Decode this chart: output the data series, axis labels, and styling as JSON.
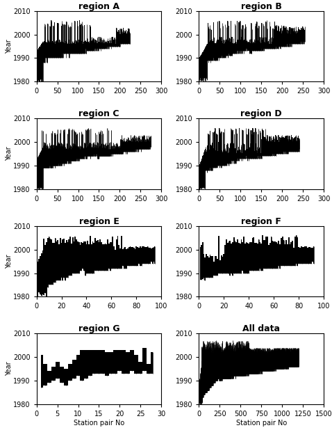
{
  "regions": [
    "region A",
    "region B",
    "region C",
    "region D",
    "region E",
    "region F",
    "region G",
    "All data"
  ],
  "xlims": [
    300,
    300,
    300,
    300,
    100,
    100,
    30,
    1500
  ],
  "n_pairs": [
    225,
    255,
    275,
    242,
    95,
    92,
    28,
    1200
  ],
  "ylim": [
    1980,
    2010
  ],
  "yticks": [
    1980,
    1990,
    2000,
    2010
  ],
  "xlabel": "Station pair No",
  "ylabel": "Year",
  "title_fontsize": 9,
  "axis_fontsize": 7,
  "tick_fontsize": 7
}
